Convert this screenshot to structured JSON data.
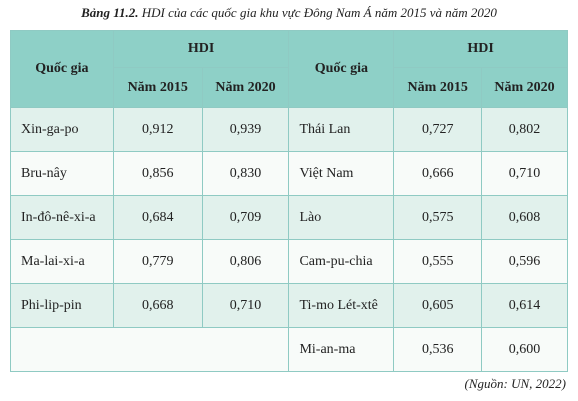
{
  "caption": {
    "label": "Bảng 11.2.",
    "text": "HDI của các quốc gia khu vực Đông Nam Á năm 2015 và năm 2020"
  },
  "table": {
    "header": {
      "country": "Quốc gia",
      "hdi": "HDI",
      "years": [
        "Năm 2015",
        "Năm 2020"
      ]
    },
    "left_rows": [
      [
        "Xin-ga-po",
        "0,912",
        "0,939"
      ],
      [
        "Bru-nây",
        "0,856",
        "0,830"
      ],
      [
        "In-đô-nê-xi-a",
        "0,684",
        "0,709"
      ],
      [
        "Ma-lai-xi-a",
        "0,779",
        "0,806"
      ],
      [
        "Phi-lip-pin",
        "0,668",
        "0,710"
      ]
    ],
    "right_rows": [
      [
        "Thái Lan",
        "0,727",
        "0,802"
      ],
      [
        "Việt Nam",
        "0,666",
        "0,710"
      ],
      [
        "Lào",
        "0,575",
        "0,608"
      ],
      [
        "Cam-pu-chia",
        "0,555",
        "0,596"
      ],
      [
        "Ti-mo Lét-xtê",
        "0,605",
        "0,614"
      ],
      [
        "Mi-an-ma",
        "0,536",
        "0,600"
      ]
    ]
  },
  "source": "(Nguồn: UN, 2022)"
}
